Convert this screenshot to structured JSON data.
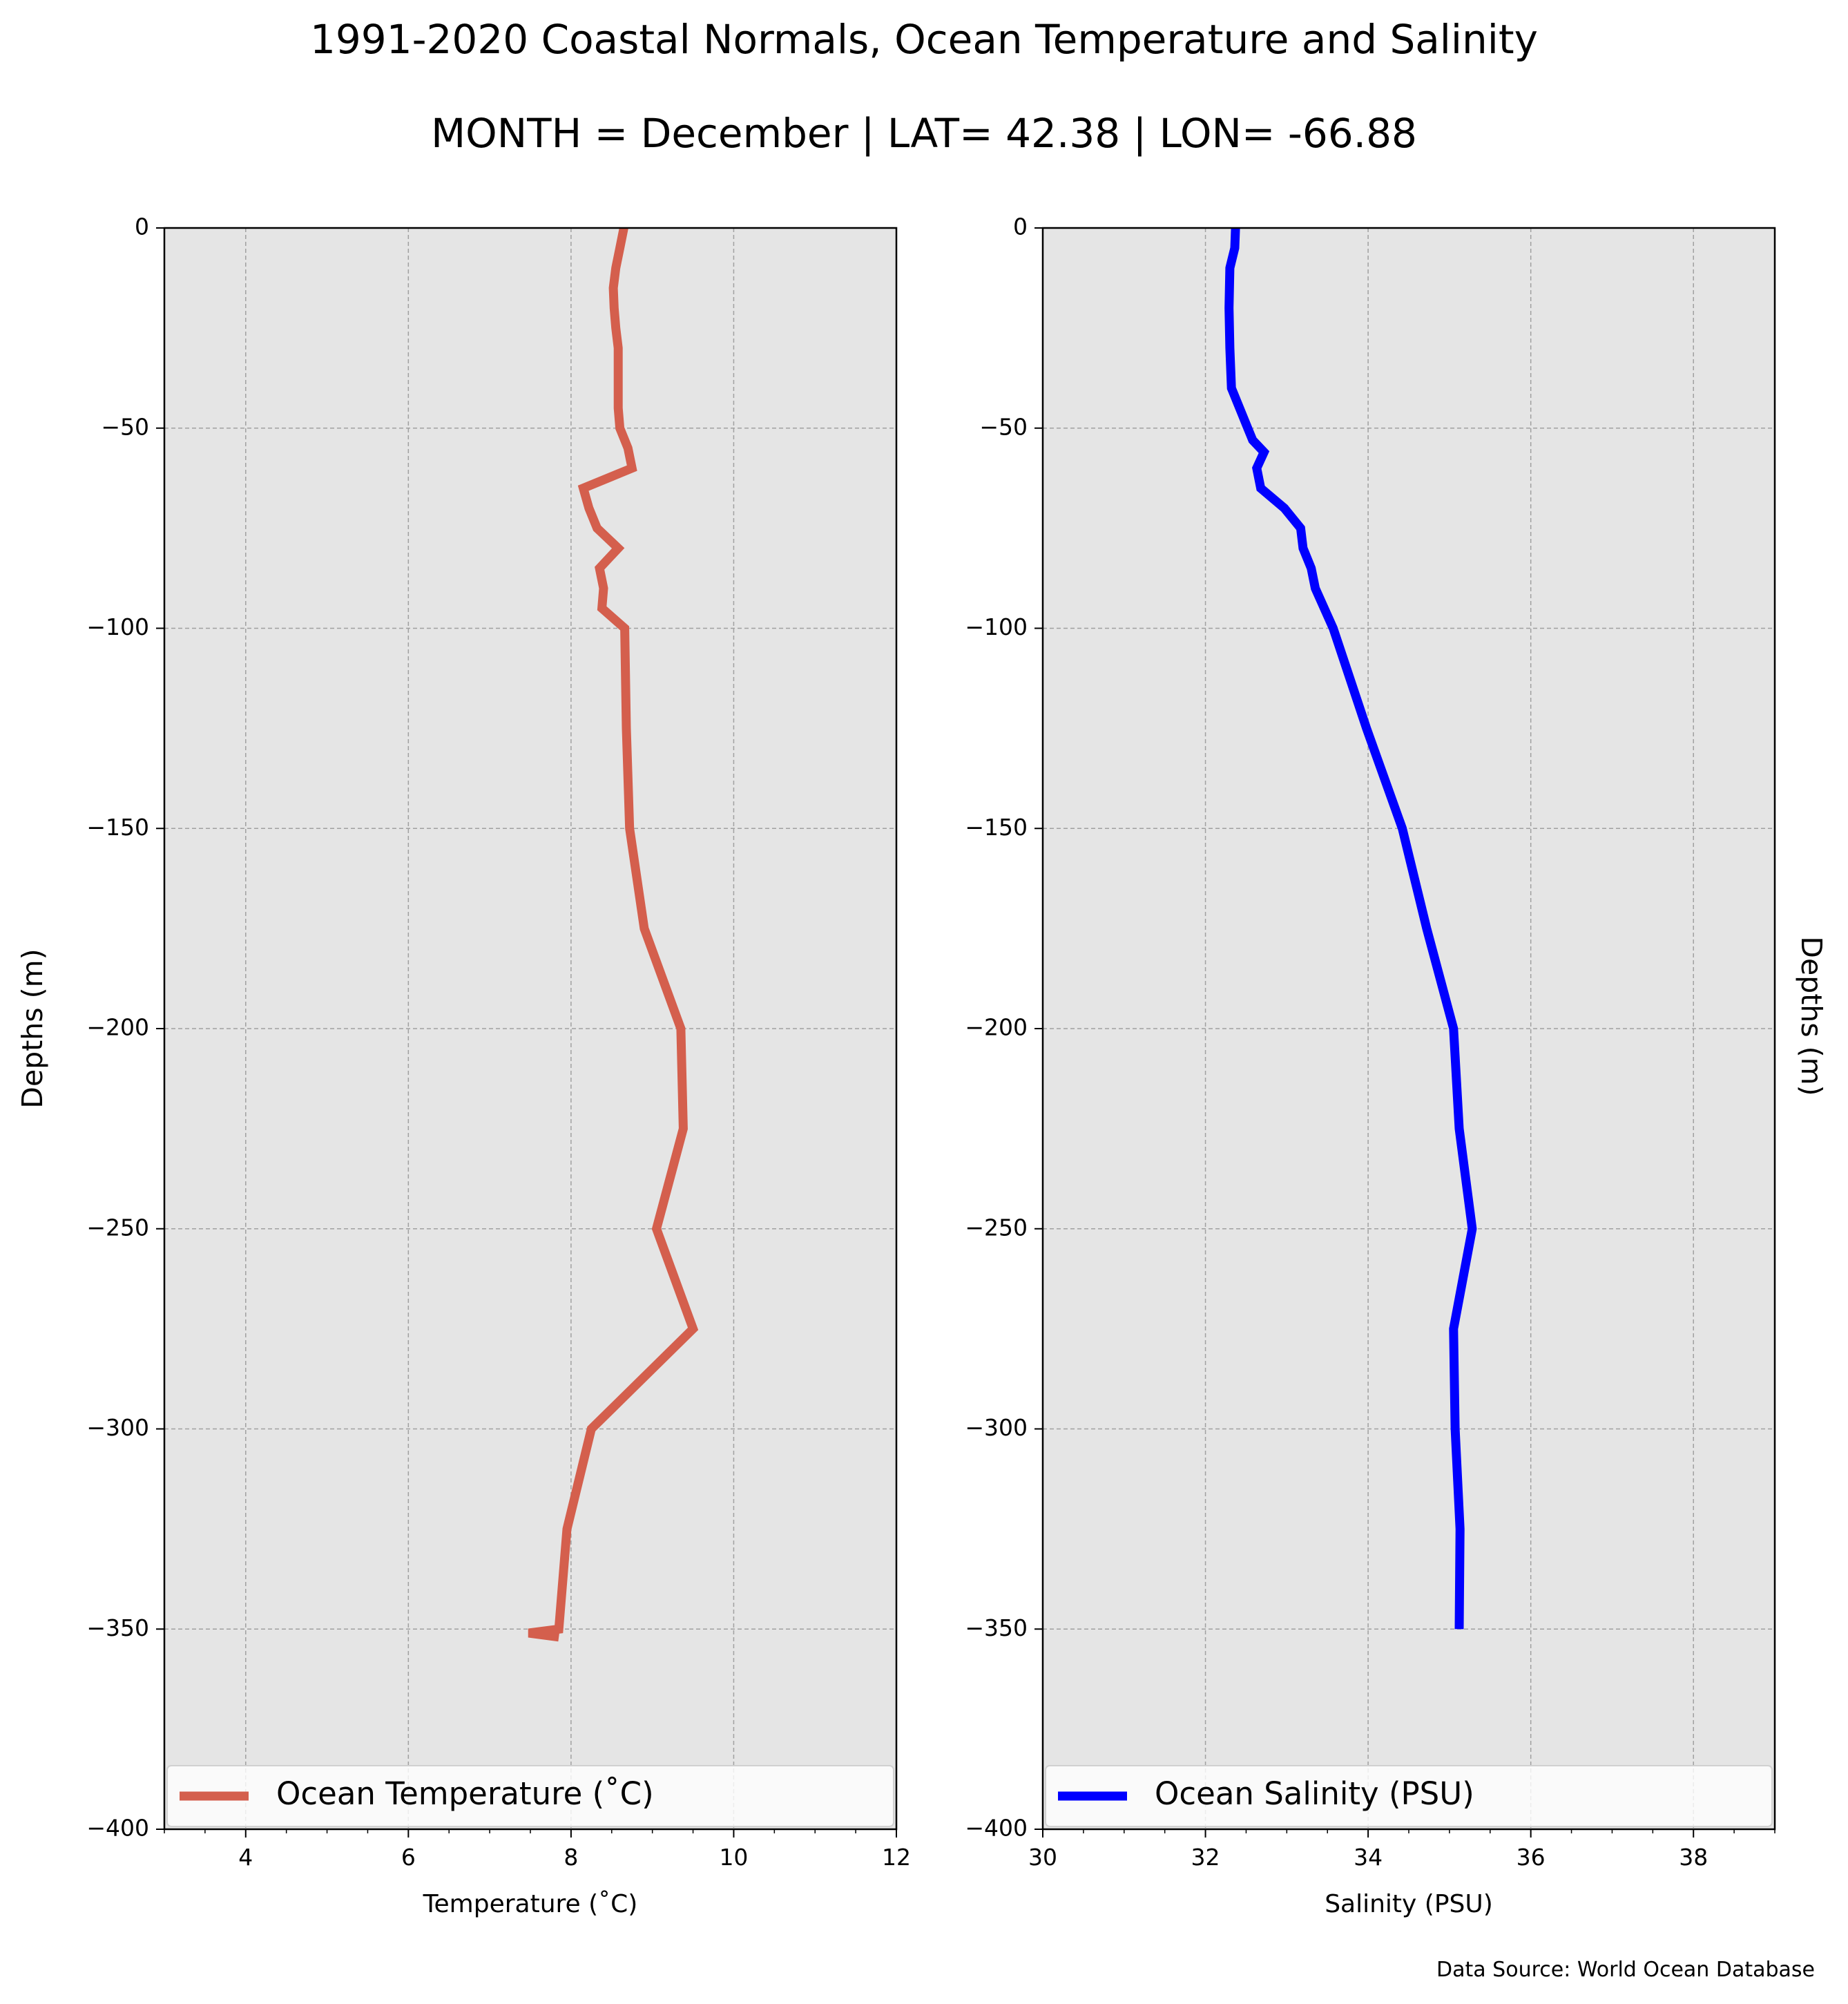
{
  "title": "1991-2020 Coastal Normals, Ocean Temperature and Salinity",
  "subtitle": "MONTH = December | LAT= 42.38 | LON= -66.88",
  "source": "Data Source: World Ocean Database",
  "colors": {
    "panel_background": "#e5e5e5",
    "grid": "#a0a0a0",
    "temperature_line": "#d45f4d",
    "salinity_line": "#0000ff"
  },
  "chart_data": [
    {
      "type": "line",
      "title": "",
      "xlabel": "Temperature (˚C)",
      "ylabel": "Depths (m)",
      "xlim": [
        3,
        12
      ],
      "ylim": [
        -400,
        0
      ],
      "xticks": [
        4,
        6,
        8,
        10,
        12
      ],
      "yticks": [
        0,
        -50,
        -100,
        -150,
        -200,
        -250,
        -300,
        -350,
        -400
      ],
      "grid": true,
      "legend_position": "bottom",
      "series": [
        {
          "name": "Ocean Temperature (˚C)",
          "color": "#d45f4d",
          "x": [
            8.65,
            8.6,
            8.55,
            8.52,
            8.53,
            8.55,
            8.58,
            8.58,
            8.58,
            8.58,
            8.6,
            8.7,
            8.75,
            8.15,
            8.22,
            8.32,
            8.58,
            8.35,
            8.4,
            8.38,
            8.66,
            8.68,
            8.72,
            8.9,
            9.35,
            9.38,
            9.05,
            9.5,
            8.25,
            7.95,
            7.85,
            7.48,
            7.85
          ],
          "y": [
            0,
            -5,
            -10,
            -15,
            -20,
            -25,
            -30,
            -35,
            -40,
            -45,
            -50,
            -55,
            -60,
            -65,
            -70,
            -75,
            -80,
            -85,
            -90,
            -95,
            -100,
            -125,
            -150,
            -175,
            -200,
            -225,
            -250,
            -275,
            -300,
            -325,
            -350,
            -351,
            -352
          ]
        }
      ]
    },
    {
      "type": "line",
      "title": "",
      "xlabel": "Salinity (PSU)",
      "ylabel": "Depths (m)",
      "xlim": [
        30,
        39
      ],
      "ylim": [
        -400,
        0
      ],
      "xticks": [
        30,
        32,
        34,
        36,
        38
      ],
      "yticks": [
        0,
        -50,
        -100,
        -150,
        -200,
        -250,
        -300,
        -350,
        -400
      ],
      "grid": true,
      "legend_position": "bottom",
      "series": [
        {
          "name": "Ocean Salinity (PSU)",
          "color": "#0000ff",
          "x": [
            32.37,
            32.36,
            32.3,
            32.29,
            32.3,
            32.32,
            32.42,
            32.52,
            32.58,
            32.72,
            32.63,
            32.68,
            32.97,
            33.17,
            33.2,
            33.3,
            33.35,
            33.57,
            33.98,
            34.42,
            34.72,
            35.05,
            35.12,
            35.28,
            35.05,
            35.07,
            35.13,
            35.12
          ],
          "y": [
            0,
            -5,
            -10,
            -20,
            -30,
            -40,
            -45,
            -50,
            -53,
            -56,
            -60,
            -65,
            -70,
            -75,
            -80,
            -85,
            -90,
            -100,
            -125,
            -150,
            -175,
            -200,
            -225,
            -250,
            -275,
            -300,
            -325,
            -350
          ]
        }
      ]
    }
  ]
}
